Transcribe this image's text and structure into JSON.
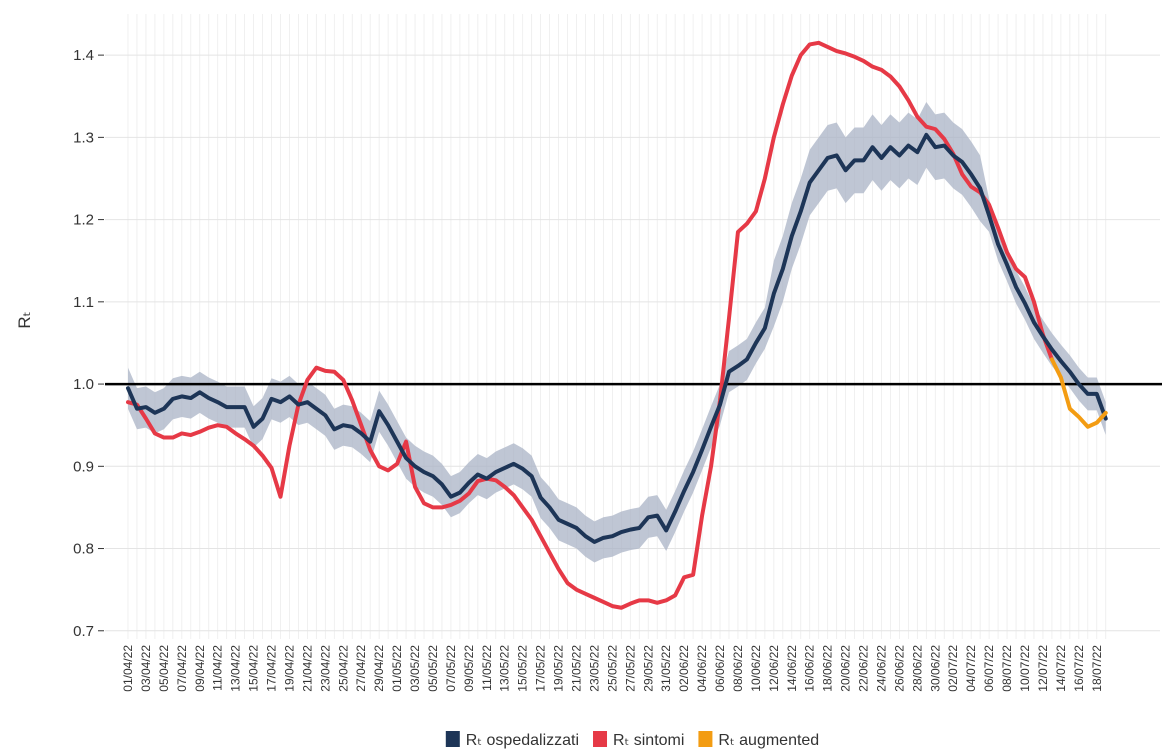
{
  "chart_data": {
    "type": "line",
    "y_label": "Rₜ",
    "categories": [
      "01/04/22",
      null,
      "03/04/22",
      null,
      "05/04/22",
      null,
      "07/04/22",
      null,
      "09/04/22",
      null,
      "11/04/22",
      null,
      "13/04/22",
      null,
      "15/04/22",
      null,
      "17/04/22",
      null,
      "19/04/22",
      null,
      "21/04/22",
      null,
      "23/04/22",
      null,
      "25/04/22",
      null,
      "27/04/22",
      null,
      "29/04/22",
      null,
      "01/05/22",
      null,
      "03/05/22",
      null,
      "05/05/22",
      null,
      "07/05/22",
      null,
      "09/05/22",
      null,
      "11/05/22",
      null,
      "13/05/22",
      null,
      "15/05/22",
      null,
      "17/05/22",
      null,
      "19/05/22",
      null,
      "21/05/22",
      null,
      "23/05/22",
      null,
      "25/05/22",
      null,
      "27/05/22",
      null,
      "29/05/22",
      null,
      "31/05/22",
      null,
      "02/06/22",
      null,
      "04/06/22",
      null,
      "06/06/22",
      null,
      "08/06/22",
      null,
      "10/06/22",
      null,
      "12/06/22",
      null,
      "14/06/22",
      null,
      "16/06/22",
      null,
      "18/06/22",
      null,
      "20/06/22",
      null,
      "22/06/22",
      null,
      "24/06/22",
      null,
      "26/06/22",
      null,
      "28/06/22",
      null,
      "30/06/22",
      null,
      "02/07/22",
      null,
      "04/07/22",
      null,
      "06/07/22",
      null,
      "08/07/22",
      null,
      "10/07/22",
      null,
      "12/07/22",
      null,
      "14/07/22",
      null,
      "16/07/22",
      null,
      "18/07/22",
      null
    ],
    "series": [
      {
        "name": "Rₜ ospedalizzati",
        "color": "#1d3557",
        "values": [
          0.995,
          0.97,
          0.972,
          0.965,
          0.97,
          0.982,
          0.985,
          0.983,
          0.99,
          0.983,
          0.978,
          0.972,
          0.972,
          0.972,
          0.948,
          0.958,
          0.982,
          0.978,
          0.985,
          0.975,
          0.978,
          0.97,
          0.962,
          0.945,
          0.95,
          0.948,
          0.94,
          0.93,
          0.967,
          0.95,
          0.93,
          0.91,
          0.9,
          0.893,
          0.888,
          0.878,
          0.863,
          0.868,
          0.88,
          0.89,
          0.885,
          0.893,
          0.898,
          0.903,
          0.897,
          0.888,
          0.862,
          0.85,
          0.835,
          0.83,
          0.825,
          0.815,
          0.808,
          0.813,
          0.815,
          0.82,
          0.823,
          0.825,
          0.838,
          0.84,
          0.822,
          0.845,
          0.87,
          0.893,
          0.92,
          0.948,
          0.975,
          1.015,
          1.022,
          1.03,
          1.05,
          1.068,
          1.11,
          1.14,
          1.18,
          1.21,
          1.245,
          1.26,
          1.275,
          1.278,
          1.26,
          1.272,
          1.272,
          1.288,
          1.275,
          1.288,
          1.278,
          1.29,
          1.282,
          1.303,
          1.288,
          1.29,
          1.278,
          1.27,
          1.255,
          1.238,
          1.205,
          1.17,
          1.145,
          1.118,
          1.098,
          1.075,
          1.058,
          1.042,
          1.028,
          1.015,
          1.0,
          0.988,
          0.988,
          0.958
        ],
        "lower": [
          0.97,
          0.945,
          0.947,
          0.94,
          0.945,
          0.957,
          0.96,
          0.958,
          0.965,
          0.958,
          0.953,
          0.947,
          0.947,
          0.947,
          0.923,
          0.933,
          0.957,
          0.953,
          0.96,
          0.95,
          0.953,
          0.945,
          0.937,
          0.92,
          0.925,
          0.923,
          0.915,
          0.905,
          0.942,
          0.925,
          0.905,
          0.885,
          0.875,
          0.868,
          0.863,
          0.853,
          0.838,
          0.843,
          0.855,
          0.865,
          0.86,
          0.868,
          0.873,
          0.878,
          0.872,
          0.863,
          0.837,
          0.825,
          0.81,
          0.805,
          0.8,
          0.79,
          0.783,
          0.788,
          0.79,
          0.795,
          0.798,
          0.8,
          0.813,
          0.815,
          0.797,
          0.82,
          0.845,
          0.868,
          0.895,
          0.923,
          0.95,
          0.99,
          0.997,
          1.005,
          1.025,
          1.043,
          1.07,
          1.1,
          1.14,
          1.17,
          1.205,
          1.22,
          1.235,
          1.238,
          1.22,
          1.232,
          1.232,
          1.248,
          1.235,
          1.248,
          1.238,
          1.25,
          1.242,
          1.263,
          1.248,
          1.25,
          1.238,
          1.23,
          1.215,
          1.198,
          1.185,
          1.15,
          1.125,
          1.098,
          1.078,
          1.055,
          1.038,
          1.022,
          1.008,
          0.995,
          0.98,
          0.968,
          0.968,
          0.938
        ],
        "upper": [
          1.02,
          0.995,
          0.997,
          0.99,
          0.995,
          1.007,
          1.01,
          1.008,
          1.015,
          1.008,
          1.003,
          0.997,
          0.997,
          0.997,
          0.973,
          0.983,
          1.007,
          1.003,
          1.01,
          1.0,
          1.003,
          0.995,
          0.987,
          0.97,
          0.975,
          0.973,
          0.965,
          0.955,
          0.992,
          0.975,
          0.955,
          0.935,
          0.925,
          0.918,
          0.913,
          0.903,
          0.888,
          0.893,
          0.905,
          0.915,
          0.91,
          0.918,
          0.923,
          0.928,
          0.922,
          0.913,
          0.887,
          0.875,
          0.86,
          0.855,
          0.85,
          0.84,
          0.833,
          0.838,
          0.84,
          0.845,
          0.848,
          0.85,
          0.863,
          0.865,
          0.847,
          0.87,
          0.895,
          0.918,
          0.945,
          0.973,
          1.0,
          1.04,
          1.047,
          1.055,
          1.075,
          1.093,
          1.15,
          1.18,
          1.22,
          1.25,
          1.285,
          1.3,
          1.315,
          1.318,
          1.3,
          1.312,
          1.312,
          1.328,
          1.315,
          1.328,
          1.318,
          1.33,
          1.322,
          1.343,
          1.328,
          1.33,
          1.318,
          1.31,
          1.295,
          1.278,
          1.225,
          1.19,
          1.165,
          1.138,
          1.118,
          1.095,
          1.078,
          1.062,
          1.048,
          1.035,
          1.02,
          1.008,
          1.008,
          0.978
        ],
        "band_color": "#aab3c5"
      },
      {
        "name": "Rₜ sintomi",
        "color": "#e63946",
        "values": [
          0.978,
          0.975,
          0.958,
          0.94,
          0.935,
          0.935,
          0.94,
          0.938,
          0.942,
          0.947,
          0.95,
          0.948,
          0.94,
          0.933,
          0.925,
          0.913,
          0.898,
          0.863,
          0.925,
          0.975,
          1.005,
          1.02,
          1.016,
          1.015,
          1.005,
          0.98,
          0.95,
          0.92,
          0.9,
          0.895,
          0.903,
          0.93,
          0.875,
          0.855,
          0.85,
          0.85,
          0.853,
          0.858,
          0.867,
          0.882,
          0.885,
          0.883,
          0.875,
          0.865,
          0.85,
          0.835,
          0.815,
          0.795,
          0.775,
          0.758,
          0.75,
          0.745,
          0.74,
          0.735,
          0.73,
          0.728,
          0.733,
          0.737,
          0.737,
          0.734,
          0.737,
          0.743,
          0.765,
          0.768,
          0.84,
          0.9,
          0.98,
          1.08,
          1.185,
          1.195,
          1.21,
          1.25,
          1.3,
          1.34,
          1.375,
          1.4,
          1.413,
          1.415,
          1.41,
          1.405,
          1.402,
          1.398,
          1.393,
          1.386,
          1.382,
          1.374,
          1.362,
          1.345,
          1.325,
          1.313,
          1.31,
          1.298,
          1.28,
          1.255,
          1.24,
          1.233,
          1.218,
          1.19,
          1.16,
          1.14,
          1.13,
          1.1,
          1.06,
          1.03,
          null,
          null,
          null,
          null,
          null,
          null
        ]
      },
      {
        "name": "Rₜ augmented",
        "color": "#f39c12",
        "values": [
          null,
          null,
          null,
          null,
          null,
          null,
          null,
          null,
          null,
          null,
          null,
          null,
          null,
          null,
          null,
          null,
          null,
          null,
          null,
          null,
          null,
          null,
          null,
          null,
          null,
          null,
          null,
          null,
          null,
          null,
          null,
          null,
          null,
          null,
          null,
          null,
          null,
          null,
          null,
          null,
          null,
          null,
          null,
          null,
          null,
          null,
          null,
          null,
          null,
          null,
          null,
          null,
          null,
          null,
          null,
          null,
          null,
          null,
          null,
          null,
          null,
          null,
          null,
          null,
          null,
          null,
          null,
          null,
          null,
          null,
          null,
          null,
          null,
          null,
          null,
          null,
          null,
          null,
          null,
          null,
          null,
          null,
          null,
          null,
          null,
          null,
          null,
          null,
          null,
          null,
          null,
          null,
          null,
          null,
          null,
          null,
          null,
          null,
          null,
          null,
          null,
          null,
          null,
          1.03,
          1.008,
          0.97,
          0.96,
          0.948,
          0.953,
          0.965
        ]
      }
    ],
    "hline": 1,
    "ylim": [
      0.69,
      1.45
    ],
    "yticks": [
      0.7,
      0.8,
      0.9,
      {
        "value": 1,
        "label": "1.0"
      },
      1.1,
      1.2,
      1.3,
      1.4
    ],
    "grid": true,
    "legend": "bottom"
  }
}
